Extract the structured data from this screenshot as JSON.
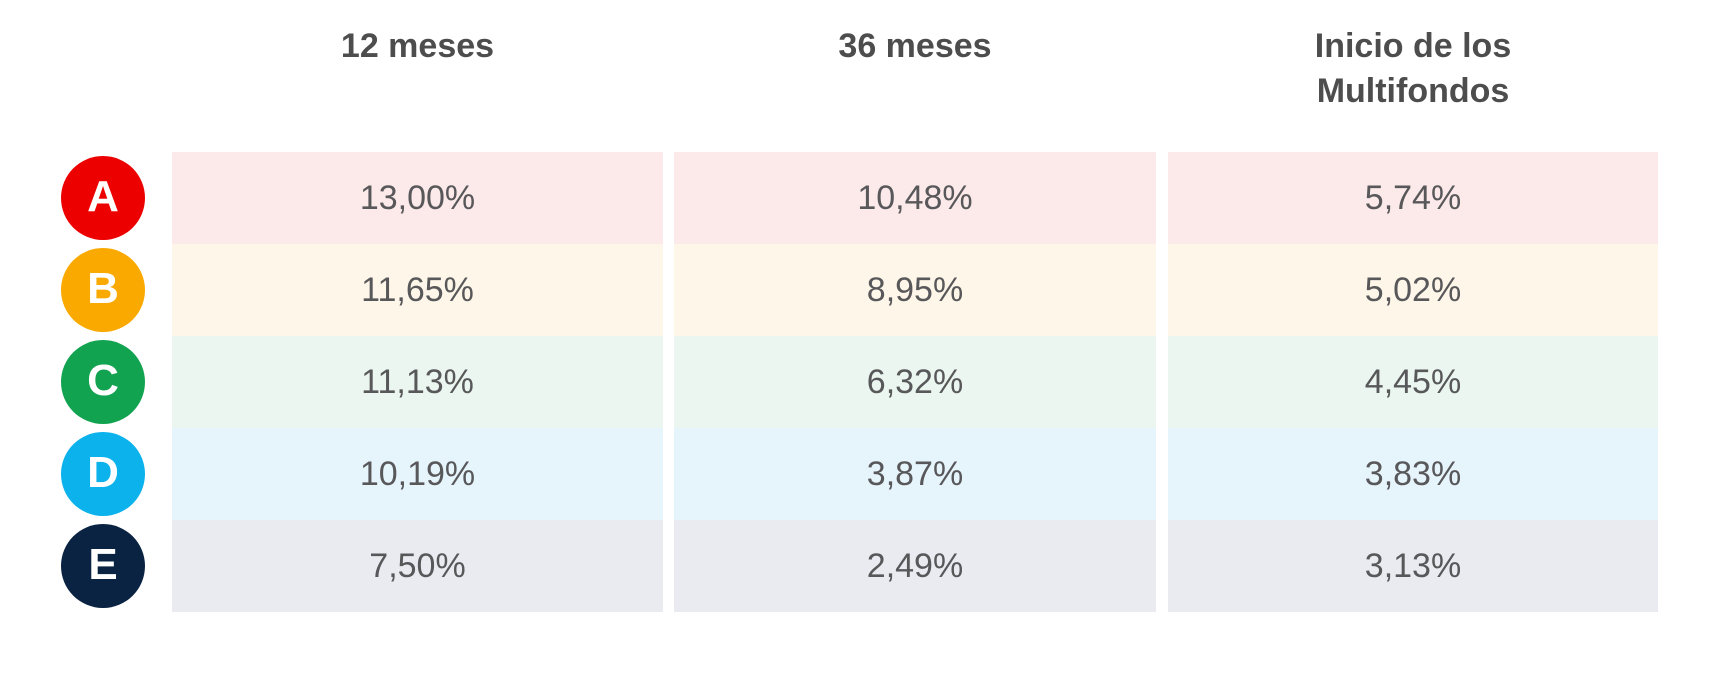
{
  "table": {
    "columns": [
      "12 meses",
      "36 meses",
      "Inicio de los Multifondos"
    ],
    "rows": [
      {
        "fund": "A",
        "circle_color": "#ec0000",
        "row_bg": "#fce9e9",
        "values": [
          "13,00%",
          "10,48%",
          "5,74%"
        ]
      },
      {
        "fund": "B",
        "circle_color": "#f9a900",
        "row_bg": "#fef6e8",
        "values": [
          "11,65%",
          "8,95%",
          "5,02%"
        ]
      },
      {
        "fund": "C",
        "circle_color": "#12a350",
        "row_bg": "#eaf6ef",
        "values": [
          "11,13%",
          "6,32%",
          "4,45%"
        ]
      },
      {
        "fund": "D",
        "circle_color": "#0bb2ec",
        "row_bg": "#e6f4fc",
        "values": [
          "10,19%",
          "3,87%",
          "3,83%"
        ]
      },
      {
        "fund": "E",
        "circle_color": "#0a2342",
        "row_bg": "#e9ebf0",
        "values": [
          "7,50%",
          "2,49%",
          "3,13%"
        ]
      }
    ],
    "text_colors": {
      "header": "#4d4d4d",
      "value": "#58585a"
    }
  },
  "chart_data": {
    "type": "table",
    "title": "",
    "columns": [
      "12 meses",
      "36 meses",
      "Inicio de los Multifondos"
    ],
    "row_labels": [
      "A",
      "B",
      "C",
      "D",
      "E"
    ],
    "row_colors": [
      "#ec0000",
      "#f9a900",
      "#12a350",
      "#0bb2ec",
      "#0a2342"
    ],
    "values_percent": [
      [
        13.0,
        10.48,
        5.74
      ],
      [
        11.65,
        8.95,
        5.02
      ],
      [
        11.13,
        6.32,
        4.45
      ],
      [
        10.19,
        3.87,
        3.83
      ],
      [
        7.5,
        2.49,
        3.13
      ]
    ],
    "value_format": "es-decimal-comma"
  }
}
